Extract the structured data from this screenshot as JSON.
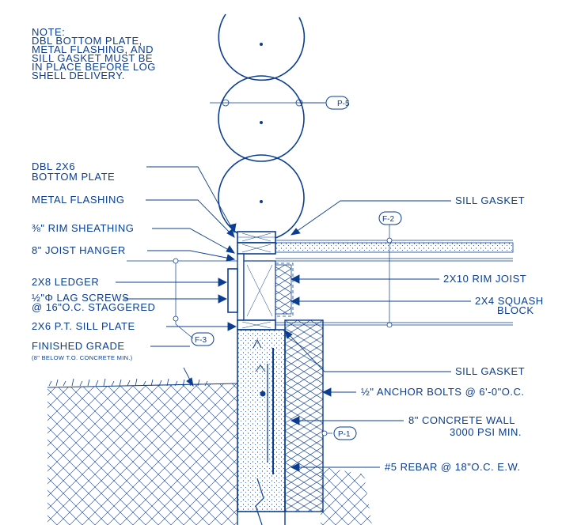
{
  "colors": {
    "ink": "#0b3d91",
    "background": "#ffffff"
  },
  "note": [
    "NOTE:",
    "DBL BOTTOM PLATE,",
    "METAL FLASHING, AND",
    "SILL GASKET MUST BE",
    "IN PLACE BEFORE LOG",
    "SHELL DELIVERY."
  ],
  "left_labels": {
    "dbl_2x6_line1": "DBL 2X6",
    "dbl_2x6_line2": "BOTTOM PLATE",
    "metal_flashing": "METAL FLASHING",
    "rim_sheathing": "⅜\" RIM SHEATHING",
    "joist_hanger": "8\" JOIST HANGER",
    "ledger": "2X8 LEDGER",
    "lag_line1": "½\"Φ LAG SCREWS",
    "lag_line2": "@ 16\"O.C. STAGGERED",
    "sill_plate": "2X6 P.T. SILL PLATE",
    "finished_grade": "FINISHED GRADE",
    "finished_grade_note": "(8\" BELOW T.O. CONCRETE MIN.)"
  },
  "right_labels": {
    "sill_gasket_top": "SILL GASKET",
    "rim_joist": "2X10 RIM JOIST",
    "squash_line1": "2X4 SQUASH",
    "squash_line2": "BLOCK",
    "sill_gasket_bottom": "SILL GASKET",
    "anchor_bolts": "½\" ANCHOR BOLTS @ 6'-0\"O.C.",
    "wall_line1": "8\" CONCRETE WALL",
    "wall_line2": "3000 PSI MIN.",
    "rebar": "#5 REBAR @ 18\"O.C. E.W."
  },
  "bubbles": {
    "p5": "P-5",
    "f2": "F-2",
    "f3": "F-3",
    "p1": "P-1"
  }
}
